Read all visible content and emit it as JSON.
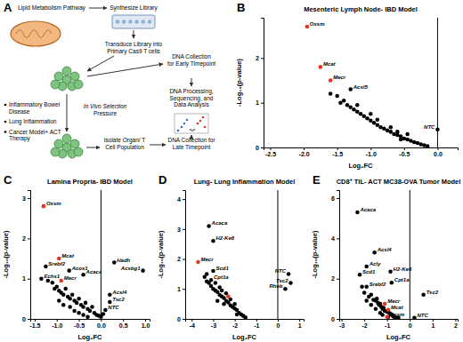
{
  "panel_a": {
    "panel": "A",
    "nodes": [
      {
        "lines": [
          "Lipid Metabolism Pathway"
        ]
      },
      {
        "lines": [
          "Synthesize Library"
        ]
      },
      {
        "lines": [
          "Transduce Library into",
          "Primary Cas9 T cells"
        ]
      },
      {
        "lines": [
          "DNA Collection",
          "for Early Timepoint"
        ]
      },
      {
        "lines": [
          "DNA Processing,",
          "Sequencing, and",
          "Data Analysis"
        ]
      },
      {
        "lines": [
          "In Vivo Selection",
          "Pressure"
        ]
      },
      {
        "lines": [
          "Isolate Organ/ T",
          "Cell Population"
        ]
      },
      {
        "lines": [
          "DNA Collection for",
          "Late Timepoint"
        ]
      }
    ],
    "bullets": [
      {
        "lines": [
          "Inflammatory Bowel",
          "Disease"
        ]
      },
      {
        "lines": [
          "Lung Inflammation"
        ]
      },
      {
        "lines": [
          "Cancer Model+ ACT",
          "Therapy"
        ]
      }
    ]
  },
  "chart_data": [
    {
      "type": "scatter",
      "panel": "B",
      "title": "Mesenteric Lymph Node- IBD Model",
      "x_label": "Log₂FC",
      "y_label": "-Log₁₀(p-value)",
      "xlim": [
        -2.6,
        0.3
      ],
      "ylim": [
        0,
        2.9
      ],
      "xticks": [
        -2.5,
        {
          "value": -2.0,
          "label": "-2.0"
        },
        -1.5,
        {
          "value": -1.0,
          "label": "-1.0"
        },
        -0.5,
        {
          "value": 0.0,
          "label": "0.0"
        }
      ],
      "yticks": [
        0,
        1,
        2
      ],
      "reference_x": 0,
      "series": [
        {
          "color": "#000000",
          "marker": "circle",
          "x": [
            -1.5,
            -1.45,
            -1.4,
            -1.35,
            -1.3,
            -1.25,
            -1.2,
            -1.15,
            -1.1,
            -1.05,
            -1.0,
            -0.95,
            -0.9,
            -0.85,
            -0.8,
            -0.75,
            -0.7,
            -0.65,
            -0.6,
            -0.55,
            -0.5,
            -0.45,
            -0.4,
            -0.35,
            -0.3,
            -0.25,
            -0.2,
            -1.2,
            -0.9,
            -1.0,
            -0.7,
            -0.6,
            -0.55,
            -0.45,
            -1.6,
            -0.15
          ],
          "values": [
            1.15,
            1.0,
            1.05,
            0.95,
            0.9,
            0.85,
            0.8,
            0.75,
            0.7,
            0.65,
            0.6,
            0.55,
            0.5,
            0.45,
            0.42,
            0.38,
            0.35,
            0.3,
            0.28,
            0.25,
            0.2,
            0.18,
            0.15,
            0.12,
            0.1,
            0.07,
            0.05,
            0.95,
            0.62,
            0.75,
            0.45,
            0.35,
            0.18,
            0.3,
            1.2,
            0.03
          ]
        },
        {
          "color": "#000000",
          "marker": "circle",
          "x": [
            -1.3,
            0.0
          ],
          "values": [
            1.3,
            0.4
          ],
          "labels": [
            "Acsl5",
            "NTC"
          ]
        },
        {
          "color": "#e8321e",
          "marker": "circle",
          "x": [
            -1.95,
            -1.75,
            -1.6
          ],
          "values": [
            2.7,
            1.8,
            1.5
          ],
          "labels": [
            "Oxsm",
            "Mcat",
            "Mecr"
          ]
        }
      ]
    },
    {
      "type": "scatter",
      "panel": "C",
      "title": "Lamina Propria- IBD Model",
      "x_label": "Log₂FC",
      "y_label": "-Log₁₀(p-value)",
      "xlim": [
        -1.6,
        1.1
      ],
      "ylim": [
        0,
        3.2
      ],
      "xticks": [
        -1.5,
        {
          "value": -1.0,
          "label": "-1.0"
        },
        -0.5,
        {
          "value": 0.0,
          "label": "0.0"
        },
        0.5,
        {
          "value": 1.0,
          "label": "1.0"
        }
      ],
      "yticks": [
        0,
        1,
        2,
        3
      ],
      "reference_x": 0,
      "series": [
        {
          "color": "#000000",
          "marker": "circle",
          "x": [
            -1.1,
            -1.05,
            -1.0,
            -0.95,
            -0.9,
            -0.85,
            -0.8,
            -0.75,
            -0.7,
            -0.65,
            -0.6,
            -0.55,
            -0.5,
            -0.45,
            -0.4,
            -0.35,
            -0.3,
            -0.25,
            -0.2,
            -0.15,
            -0.1,
            -0.05,
            0.0,
            -0.6,
            -0.5,
            -0.4,
            -0.3,
            -1.2,
            -0.7,
            -0.85,
            0.05,
            -0.95
          ],
          "values": [
            0.9,
            0.75,
            0.8,
            0.7,
            0.65,
            0.6,
            0.75,
            0.55,
            0.5,
            0.6,
            0.45,
            0.4,
            0.5,
            0.35,
            0.3,
            0.4,
            0.25,
            0.2,
            0.3,
            0.15,
            0.1,
            0.08,
            0.05,
            0.2,
            0.15,
            0.1,
            0.05,
            0.95,
            0.3,
            0.35,
            0.12,
            0.45
          ]
        },
        {
          "color": "#000000",
          "marker": "circle",
          "x": [
            -1.25,
            -0.72,
            -1.35,
            -0.4,
            0.3,
            0.95,
            0.2,
            0.2,
            0.1
          ],
          "values": [
            1.3,
            1.2,
            1.0,
            1.1,
            1.4,
            1.2,
            0.6,
            0.42,
            0.22
          ],
          "labels": [
            "Srebf2",
            "Acox1",
            "Echs1",
            "Acaca",
            "Hadh",
            "Acsbg1",
            "Acsl4",
            "Tsc2",
            "NTC"
          ]
        },
        {
          "color": "#e8321e",
          "marker": "circle",
          "x": [
            -1.3,
            -0.95,
            -0.9
          ],
          "values": [
            2.8,
            1.5,
            0.95
          ],
          "labels": [
            "Oxsm",
            "Mcat",
            "Mecr"
          ]
        }
      ]
    },
    {
      "type": "scatter",
      "panel": "D",
      "title": "Lung- Lung Inflammation Model",
      "x_label": "Log₂FC",
      "y_label": "-Log₁₀(p-value)",
      "xlim": [
        -4.3,
        1.2
      ],
      "ylim": [
        0,
        4.3
      ],
      "xticks": [
        -4,
        -3,
        -2,
        -1,
        0,
        1
      ],
      "yticks": [
        0,
        1,
        2,
        3,
        4
      ],
      "reference_x": 0,
      "series": [
        {
          "color": "#000000",
          "marker": "circle",
          "x": [
            -3.4,
            -3.3,
            -3.2,
            -3.1,
            -3.0,
            -2.9,
            -2.8,
            -2.7,
            -2.6,
            -2.5,
            -2.4,
            -2.3,
            -2.2,
            -2.1,
            -2.0,
            -1.9,
            -1.8,
            -1.7,
            -1.6,
            -1.5,
            -2.9,
            -2.7,
            -2.6,
            -2.5,
            -2.4,
            -2.2,
            -2.0,
            -1.9,
            -3.3,
            -2.8
          ],
          "values": [
            1.4,
            1.25,
            1.2,
            1.1,
            1.0,
            0.95,
            0.9,
            0.8,
            0.75,
            0.7,
            0.6,
            0.55,
            0.45,
            0.4,
            0.35,
            0.3,
            0.2,
            0.15,
            0.1,
            0.05,
            1.2,
            1.05,
            0.95,
            0.5,
            0.85,
            0.65,
            0.5,
            0.15,
            1.5,
            0.6
          ]
        },
        {
          "color": "#000000",
          "marker": "circle",
          "x": [
            -3.2,
            -3.0,
            -3.0,
            -3.1,
            0.5,
            0.6,
            0.35
          ],
          "values": [
            3.1,
            2.6,
            1.6,
            1.3,
            1.5,
            1.2,
            1.0
          ],
          "labels": [
            "Acaca",
            "H2-Ke6",
            "Scd1",
            "Cpt1a",
            "NTC",
            "Tsc2",
            "Rheb"
          ]
        },
        {
          "color": "#e8321e",
          "marker": "circle",
          "x": [
            -3.7,
            -2.3
          ],
          "values": [
            1.9,
            0.75
          ],
          "labels": [
            "Mecr",
            null
          ]
        }
      ]
    },
    {
      "type": "scatter",
      "panel": "E",
      "title": "CD8⁺ TIL- ACT MC38-OVA Tumor Model",
      "x_label": "Log₂FC",
      "y_label": "-Log₁₀(p-value)",
      "xlim": [
        -3.1,
        2.1
      ],
      "ylim": [
        0,
        6.4
      ],
      "xticks": [
        -3,
        -2,
        -1,
        0,
        1,
        2
      ],
      "yticks": [
        0,
        2,
        4,
        6
      ],
      "reference_x": 0,
      "series": [
        {
          "color": "#000000",
          "marker": "circle",
          "x": [
            -2.0,
            -1.8,
            -1.7,
            -1.6,
            -1.5,
            -1.45,
            -1.4,
            -1.35,
            -1.3,
            -1.25,
            -1.2,
            -1.15,
            -1.1,
            -1.0,
            -0.9,
            -0.85,
            -0.8,
            -0.75,
            -0.7,
            -0.6,
            -0.5,
            -1.3,
            -1.2,
            -1.5,
            -1.7,
            -0.95,
            -2.1,
            -1.9
          ],
          "values": [
            1.3,
            1.1,
            1.2,
            0.95,
            0.9,
            1.0,
            0.8,
            0.7,
            0.75,
            0.6,
            0.5,
            0.55,
            0.4,
            0.35,
            0.3,
            0.25,
            0.2,
            0.15,
            0.1,
            0.08,
            0.05,
            0.3,
            0.2,
            0.5,
            0.7,
            0.1,
            1.6,
            0.9
          ]
        },
        {
          "color": "#000000",
          "marker": "circle",
          "x": [
            -2.3,
            -1.55,
            -0.85,
            -2.2,
            -1.9,
            -0.8,
            -1.9,
            0.6,
            0.2
          ],
          "values": [
            5.3,
            3.3,
            2.35,
            2.2,
            2.6,
            1.8,
            1.6,
            1.2,
            0.05
          ],
          "labels": [
            "Acaca",
            "Acsl4",
            "H2-Ke6",
            "Scd1",
            "Acly",
            "Cpt1a",
            "Srebf2",
            "Tsc2",
            "NTC"
          ]
        },
        {
          "color": "#e8321e",
          "marker": "circle",
          "x": [
            -1.1,
            -0.95,
            -1.0
          ],
          "values": [
            0.75,
            0.45,
            0.1
          ],
          "labels": [
            "Mecr",
            "Mcat",
            "Oxsm"
          ]
        }
      ]
    }
  ]
}
